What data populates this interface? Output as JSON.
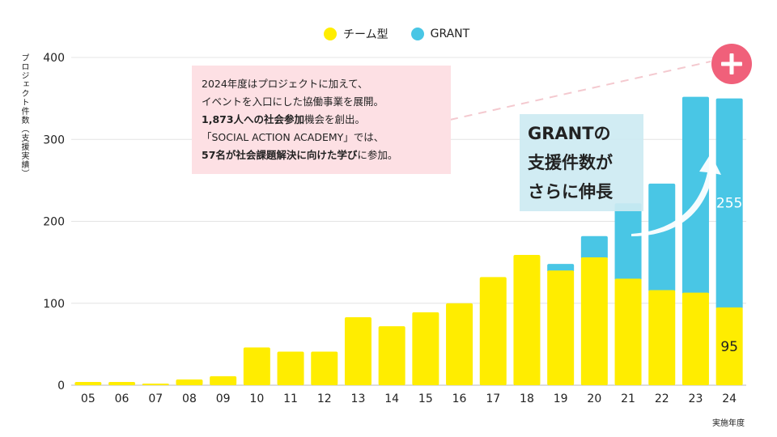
{
  "legend": {
    "items": [
      {
        "label": "チーム型",
        "color": "#ffed00"
      },
      {
        "label": "GRANT",
        "color": "#49c6e5"
      }
    ]
  },
  "axis": {
    "ylabel": "プロジェクト件数（支援実績）",
    "xlabel": "実施年度"
  },
  "note": {
    "lines": [
      [
        {
          "t": "2024年度はプロジェクトに加えて、",
          "b": false
        }
      ],
      [
        {
          "t": "イベントを入口にした協働事業を展開。",
          "b": false
        }
      ],
      [
        {
          "t": "1,873人への社会参加",
          "b": true
        },
        {
          "t": "機会を創出。",
          "b": false
        }
      ],
      [
        {
          "t": "「SOCIAL ACTION ACADEMY」では、",
          "b": false
        }
      ],
      [
        {
          "t": "57名が社会課題解決に向けた学び",
          "b": true
        },
        {
          "t": "に参加。",
          "b": false
        }
      ]
    ]
  },
  "callout": {
    "lines": [
      "GRANTの",
      "支援件数が",
      "さらに伸長"
    ]
  },
  "expand_button": {
    "icon": "plus-icon"
  },
  "chart_data": {
    "type": "bar",
    "stacked": true,
    "categories": [
      "05",
      "06",
      "07",
      "08",
      "09",
      "10",
      "11",
      "12",
      "13",
      "14",
      "15",
      "16",
      "17",
      "18",
      "19",
      "20",
      "21",
      "22",
      "23",
      "24"
    ],
    "series": [
      {
        "name": "チーム型",
        "color": "#ffed00",
        "values": [
          4,
          4,
          2,
          7,
          11,
          46,
          41,
          41,
          83,
          72,
          89,
          100,
          132,
          159,
          140,
          156,
          130,
          116,
          113,
          95
        ]
      },
      {
        "name": "GRANT",
        "color": "#49c6e5",
        "values": [
          0,
          0,
          0,
          0,
          0,
          0,
          0,
          0,
          0,
          0,
          0,
          0,
          0,
          0,
          8,
          26,
          92,
          130,
          239,
          255
        ]
      }
    ],
    "ylim": [
      0,
      400
    ],
    "yticks": [
      0,
      100,
      200,
      300,
      400
    ],
    "grid": true,
    "legend": "top-center",
    "data_labels": [
      {
        "category": "24",
        "series": "GRANT",
        "text": "255"
      },
      {
        "category": "24",
        "series": "チーム型",
        "text": "95"
      }
    ]
  }
}
